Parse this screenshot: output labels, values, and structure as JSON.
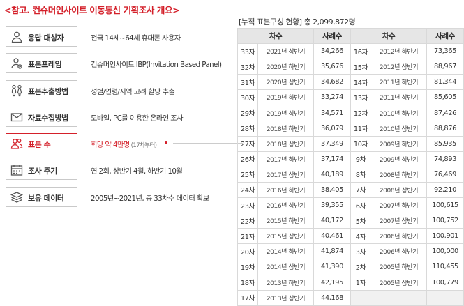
{
  "title": "<참고. 컨슈머인사이트 이동통신 기획조사 개요>",
  "items": [
    {
      "label": "응답 대상자",
      "desc": "전국 14세~64세 휴대폰 사용자",
      "icon": "person-icon"
    },
    {
      "label": "표본프레임",
      "desc": "컨슈머인사이트 IBP(Invitation Based Panel)",
      "icon": "panel-person-icon"
    },
    {
      "label": "표본추출방법",
      "desc": "성별/연령/지역 고려 할당 추출",
      "icon": "people-icon"
    },
    {
      "label": "자료수집방법",
      "desc": "모바일, PC를 이용한 온라인 조사",
      "icon": "envelope-icon"
    },
    {
      "label": "표본 수",
      "desc": "회당 약 4만명",
      "desc_sub": "(17차부터)",
      "icon": "group-icon"
    },
    {
      "label": "조사 주기",
      "desc": "연 2회, 상반기 4월, 하반기 10월",
      "icon": "calendar-icon"
    },
    {
      "label": "보유 데이터",
      "desc": "2005년~2021년, 총 33차수 데이터 확보",
      "icon": "stack-icon"
    }
  ],
  "stats": {
    "label": "[누적 표본구성 현황]",
    "total": "총 2,099,872명"
  },
  "table": {
    "headers": [
      "차수",
      "사례수",
      "차수",
      "사례수"
    ],
    "rows": [
      {
        "l_round": "33차",
        "l_period": "2021년 상반기",
        "l_count": "34,266",
        "r_round": "16차",
        "r_period": "2012년 하반기",
        "r_count": "73,365"
      },
      {
        "l_round": "32차",
        "l_period": "2020년 하반기",
        "l_count": "35,676",
        "r_round": "15차",
        "r_period": "2012년 상반기",
        "r_count": "88,967"
      },
      {
        "l_round": "31차",
        "l_period": "2020년 상반기",
        "l_count": "34,682",
        "r_round": "14차",
        "r_period": "2011년 하반기",
        "r_count": "81,344"
      },
      {
        "l_round": "30차",
        "l_period": "2019년 하반기",
        "l_count": "33,274",
        "r_round": "13차",
        "r_period": "2011년 상반기",
        "r_count": "85,605"
      },
      {
        "l_round": "29차",
        "l_period": "2019년 상반기",
        "l_count": "34,571",
        "r_round": "12차",
        "r_period": "2010년 하반기",
        "r_count": "87,426"
      },
      {
        "l_round": "28차",
        "l_period": "2018년 하반기",
        "l_count": "36,079",
        "r_round": "11차",
        "r_period": "2010년 상반기",
        "r_count": "88,876"
      },
      {
        "l_round": "27차",
        "l_period": "2018년 상반기",
        "l_count": "37,349",
        "r_round": "10차",
        "r_period": "2009년 하반기",
        "r_count": "85,935"
      },
      {
        "l_round": "26차",
        "l_period": "2017년 하반기",
        "l_count": "37,174",
        "r_round": "9차",
        "r_period": "2009년 상반기",
        "r_count": "74,893"
      },
      {
        "l_round": "25차",
        "l_period": "2017년 상반기",
        "l_count": "40,189",
        "r_round": "8차",
        "r_period": "2008년 하반기",
        "r_count": "76,469"
      },
      {
        "l_round": "24차",
        "l_period": "2016년 하반기",
        "l_count": "38,405",
        "r_round": "7차",
        "r_period": "2008년 상반기",
        "r_count": "92,210"
      },
      {
        "l_round": "23차",
        "l_period": "2016년 상반기",
        "l_count": "39,355",
        "r_round": "6차",
        "r_period": "2007년 하반기",
        "r_count": "100,615"
      },
      {
        "l_round": "22차",
        "l_period": "2015년 하반기",
        "l_count": "40,172",
        "r_round": "5차",
        "r_period": "2007년 상반기",
        "r_count": "100,752"
      },
      {
        "l_round": "21차",
        "l_period": "2015년 상반기",
        "l_count": "40,461",
        "r_round": "4차",
        "r_period": "2006년 하반기",
        "r_count": "100,901"
      },
      {
        "l_round": "20차",
        "l_period": "2014년 하반기",
        "l_count": "41,874",
        "r_round": "3차",
        "r_period": "2006년 상반기",
        "r_count": "100,000"
      },
      {
        "l_round": "19차",
        "l_period": "2014년 상반기",
        "l_count": "41,390",
        "r_round": "2차",
        "r_period": "2005년 하반기",
        "r_count": "110,455"
      },
      {
        "l_round": "18차",
        "l_period": "2013년 하반기",
        "l_count": "42,195",
        "r_round": "1차",
        "r_period": "2005년 상반기",
        "r_count": "100,779"
      },
      {
        "l_round": "17차",
        "l_period": "2013년 상반기",
        "l_count": "44,168",
        "r_round": "",
        "r_period": "",
        "r_count": ""
      }
    ]
  },
  "colors": {
    "accent": "#d4202a",
    "header_bg": "#e6e6e6",
    "border": "#d9d9d9"
  }
}
